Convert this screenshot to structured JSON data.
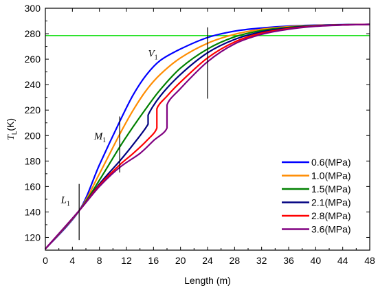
{
  "chart_data": {
    "type": "line",
    "title": "",
    "xlabel": "Length (m)",
    "ylabel": {
      "main": "T",
      "sub": "L",
      "unit": "(K)"
    },
    "xlim": [
      0,
      48
    ],
    "ylim": [
      110,
      300
    ],
    "xticks": [
      0,
      4,
      8,
      12,
      16,
      20,
      24,
      28,
      32,
      36,
      40,
      44,
      48
    ],
    "yticks": [
      120,
      140,
      160,
      180,
      200,
      220,
      240,
      260,
      280,
      300
    ],
    "grid": false,
    "legend_position": "bottom-right",
    "reference_line": {
      "y": 278.5,
      "color": "#00dd00"
    },
    "annotations": [
      {
        "main": "L",
        "sub": "1",
        "x": 5,
        "y_range": [
          118,
          162
        ],
        "label_x": 2.3,
        "label_y": 147
      },
      {
        "main": "M",
        "sub": "1",
        "x": 11,
        "y_range": [
          171,
          215
        ],
        "label_x": 7.2,
        "label_y": 197
      },
      {
        "main": "V",
        "sub": "1",
        "x": 24,
        "y_range": [
          229,
          285
        ],
        "label_x": 15.2,
        "label_y": 262
      }
    ],
    "series": [
      {
        "name": "0.6(MPa)",
        "color": "#0000ff",
        "points": [
          [
            0,
            111
          ],
          [
            5,
            141
          ],
          [
            8,
            177
          ],
          [
            11,
            211
          ],
          [
            13,
            232
          ],
          [
            15,
            248
          ],
          [
            17,
            259
          ],
          [
            20,
            268
          ],
          [
            24,
            277
          ],
          [
            28,
            282
          ],
          [
            32,
            284.5
          ],
          [
            36,
            286
          ],
          [
            40,
            286.7
          ],
          [
            44,
            287.1
          ],
          [
            48,
            287.3
          ]
        ]
      },
      {
        "name": "1.0(MPa)",
        "color": "#ff8c00",
        "points": [
          [
            0,
            111
          ],
          [
            5,
            141
          ],
          [
            8,
            170
          ],
          [
            11,
            201
          ],
          [
            13,
            220
          ],
          [
            15,
            236
          ],
          [
            17,
            248
          ],
          [
            20,
            261
          ],
          [
            24,
            272.5
          ],
          [
            28,
            279.5
          ],
          [
            32,
            283.5
          ],
          [
            36,
            285.5
          ],
          [
            40,
            286.5
          ],
          [
            44,
            287
          ],
          [
            48,
            287.3
          ]
        ]
      },
      {
        "name": "1.5(MPa)",
        "color": "#008000",
        "points": [
          [
            0,
            111
          ],
          [
            5,
            141
          ],
          [
            8,
            165
          ],
          [
            11,
            191
          ],
          [
            13,
            207
          ],
          [
            15,
            222
          ],
          [
            17,
            236
          ],
          [
            20,
            253
          ],
          [
            24,
            268
          ],
          [
            28,
            277.5
          ],
          [
            32,
            282.5
          ],
          [
            36,
            285
          ],
          [
            40,
            286.3
          ],
          [
            44,
            287
          ],
          [
            48,
            287.3
          ]
        ]
      },
      {
        "name": "2.1(MPa)",
        "color": "#000080",
        "points": [
          [
            0,
            111
          ],
          [
            5,
            141
          ],
          [
            8,
            162
          ],
          [
            11,
            180
          ],
          [
            13,
            193
          ],
          [
            15.2,
            209
          ],
          [
            15.2,
            216
          ],
          [
            17,
            231
          ],
          [
            20,
            248
          ],
          [
            24,
            265
          ],
          [
            28,
            275.5
          ],
          [
            32,
            281.5
          ],
          [
            36,
            284.5
          ],
          [
            40,
            286.2
          ],
          [
            44,
            287
          ],
          [
            48,
            287.3
          ]
        ]
      },
      {
        "name": "2.8(MPa)",
        "color": "#ff0000",
        "points": [
          [
            0,
            111
          ],
          [
            5,
            141
          ],
          [
            8,
            161
          ],
          [
            11,
            177
          ],
          [
            13,
            186
          ],
          [
            15,
            196
          ],
          [
            16.5,
            206
          ],
          [
            16.5,
            221
          ],
          [
            18,
            231
          ],
          [
            20,
            242
          ],
          [
            24,
            261
          ],
          [
            28,
            273.5
          ],
          [
            32,
            280.5
          ],
          [
            36,
            284
          ],
          [
            40,
            286
          ],
          [
            44,
            286.9
          ],
          [
            48,
            287.3
          ]
        ]
      },
      {
        "name": "3.6(MPa)",
        "color": "#800080",
        "points": [
          [
            0,
            111
          ],
          [
            5,
            141
          ],
          [
            8,
            160
          ],
          [
            11,
            175
          ],
          [
            14,
            186
          ],
          [
            16,
            196
          ],
          [
            18,
            206
          ],
          [
            18,
            224
          ],
          [
            20,
            237
          ],
          [
            24,
            258
          ],
          [
            28,
            272
          ],
          [
            32,
            279.5
          ],
          [
            36,
            283.5
          ],
          [
            40,
            285.8
          ],
          [
            44,
            286.8
          ],
          [
            48,
            287.3
          ]
        ]
      }
    ]
  }
}
